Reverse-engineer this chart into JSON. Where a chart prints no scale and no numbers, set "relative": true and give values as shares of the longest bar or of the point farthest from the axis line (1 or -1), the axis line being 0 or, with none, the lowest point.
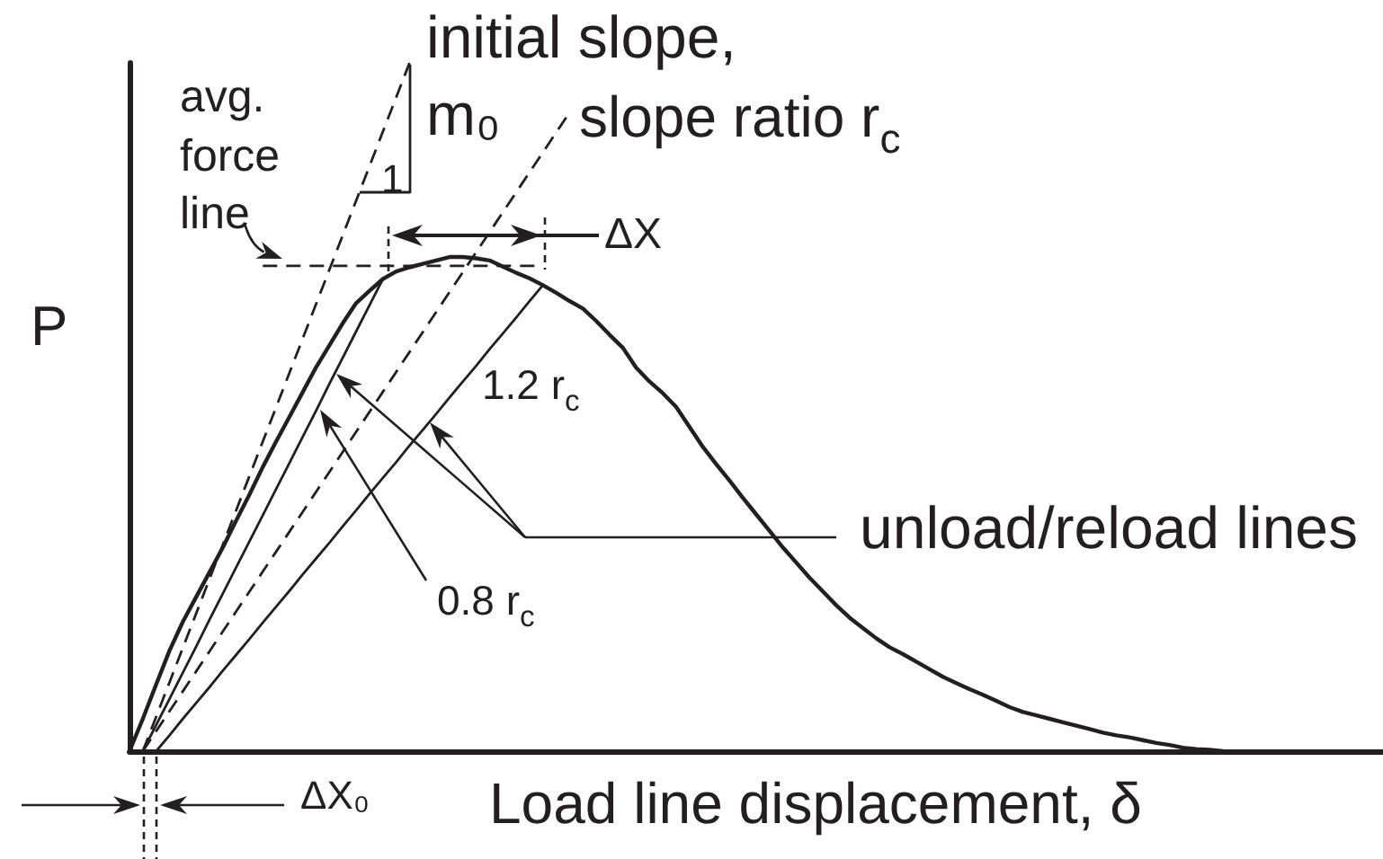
{
  "chart_data": {
    "type": "line",
    "xlabel": "Load line displacement, δ",
    "ylabel": "P",
    "relative": true,
    "tick_labels": false,
    "marker": "none",
    "categories": [
      null,
      null,
      null,
      null,
      null,
      null,
      null,
      null,
      null,
      null,
      null,
      null,
      null,
      null,
      null,
      null,
      null,
      null,
      null,
      null,
      null,
      null,
      null,
      null,
      null,
      null,
      null,
      null,
      null,
      null,
      null,
      null,
      null,
      null,
      null,
      null,
      null,
      null,
      null,
      null,
      null,
      null,
      null,
      null,
      null,
      null,
      null,
      null,
      null,
      null,
      null,
      null,
      null,
      null,
      null,
      null,
      null,
      null,
      null,
      null,
      null,
      null,
      null,
      null,
      null,
      null,
      null,
      null,
      null,
      null,
      null,
      null,
      null,
      null,
      null,
      null,
      null,
      null,
      null,
      null,
      null,
      null,
      null,
      null,
      null,
      null,
      null,
      null,
      null,
      null,
      null,
      null,
      null,
      null,
      null
    ],
    "annotations": [
      "ΔX",
      "1",
      "1.2 r$_{c}$",
      "0.8 r$_{c}$",
      "unload/reload lines",
      "ΔX₀",
      "m₀"
    ],
    "series": [
      {
        "color": "#231f20",
        "values": [
          0,
          0.047,
          0.097,
          0.146,
          0.188,
          0.224,
          0.26,
          0.296,
          0.335,
          0.373,
          0.413,
          0.45,
          0.486,
          0.522,
          0.558,
          0.59,
          0.622,
          0.651,
          0.669,
          0.686,
          0.697,
          0.703,
          0.708,
          0.713,
          0.718,
          0.718,
          0.716,
          0.713,
          0.704,
          0.695,
          0.687,
          0.677,
          0.666,
          0.654,
          0.643,
          0.625,
          0.605,
          0.586,
          0.557,
          0.537,
          0.52,
          0.5,
          0.471,
          0.442,
          0.417,
          0.393,
          0.368,
          0.344,
          0.32,
          0.296,
          0.274,
          0.252,
          0.232,
          0.212,
          0.194,
          0.179,
          0.164,
          0.151,
          0.141,
          0.13,
          0.119,
          0.108,
          0.099,
          0.09,
          0.082,
          0.073,
          0.064,
          0.057,
          0.052,
          0.047,
          0.042,
          0.037,
          0.032,
          0.027,
          0.023,
          0.02,
          0.016,
          0.012,
          0.009,
          0.005,
          0.003,
          0.002,
          0,
          null,
          null,
          null,
          null,
          null,
          null,
          null,
          null,
          null,
          null,
          null,
          null
        ]
      },
      {
        "name": "initial slope,",
        "color": "#231f20",
        "line_style": "dashed",
        "values": [
          null,
          0,
          0.05,
          0.1,
          0.15,
          0.2,
          0.25,
          0.3,
          0.35,
          0.4,
          0.45,
          0.5,
          0.55,
          0.6,
          0.65,
          0.7,
          0.75,
          0.8,
          0.85,
          0.9,
          0.95,
          1,
          null,
          null,
          null,
          null,
          null,
          null,
          null,
          null,
          null,
          null,
          null,
          null,
          null,
          null,
          null,
          null,
          null,
          null,
          null,
          null,
          null,
          null,
          null,
          null,
          null,
          null,
          null,
          null,
          null,
          null,
          null,
          null,
          null,
          null,
          null,
          null,
          null,
          null,
          null,
          null,
          null,
          null,
          null,
          null,
          null,
          null,
          null,
          null,
          null,
          null,
          null,
          null,
          null,
          null,
          null,
          null,
          null,
          null,
          null,
          null,
          null,
          null,
          null,
          null,
          null,
          null,
          null,
          null,
          null,
          null,
          null,
          null,
          null
        ]
      },
      {
        "name": "slope ratio r$_{c}$",
        "color": "#231f20",
        "line_style": "dashed",
        "values": [
          null,
          0,
          0.029,
          0.058,
          0.087,
          0.116,
          0.145,
          0.174,
          0.203,
          0.232,
          0.261,
          0.29,
          0.319,
          0.348,
          0.377,
          0.406,
          0.435,
          0.464,
          0.493,
          0.522,
          0.551,
          0.58,
          0.609,
          0.638,
          0.667,
          0.696,
          0.725,
          0.754,
          0.783,
          0.812,
          0.841,
          0.87,
          0.899,
          0.928,
          null,
          null,
          null,
          null,
          null,
          null,
          null,
          null,
          null,
          null,
          null,
          null,
          null,
          null,
          null,
          null,
          null,
          null,
          null,
          null,
          null,
          null,
          null,
          null,
          null,
          null,
          null,
          null,
          null,
          null,
          null,
          null,
          null,
          null,
          null,
          null,
          null,
          null,
          null,
          null,
          null,
          null,
          null,
          null,
          null,
          null,
          null,
          null,
          null,
          null,
          null,
          null,
          null,
          null,
          null,
          null,
          null,
          null,
          null,
          null,
          null
        ]
      },
      {
        "color": "#231f20",
        "values": [
          null,
          0,
          0.038,
          0.076,
          0.114,
          0.152,
          0.191,
          0.229,
          0.267,
          0.305,
          0.343,
          0.381,
          0.419,
          0.457,
          0.495,
          0.534,
          0.572,
          0.61,
          0.648,
          0.686,
          null,
          null,
          null,
          null,
          null,
          null,
          null,
          null,
          null,
          null,
          null,
          null,
          null,
          null,
          null,
          null,
          null,
          null,
          null,
          null,
          null,
          null,
          null,
          null,
          null,
          null,
          null,
          null,
          null,
          null,
          null,
          null,
          null,
          null,
          null,
          null,
          null,
          null,
          null,
          null,
          null,
          null,
          null,
          null,
          null,
          null,
          null,
          null,
          null,
          null,
          null,
          null,
          null,
          null,
          null,
          null,
          null,
          null,
          null,
          null,
          null,
          null,
          null,
          null,
          null,
          null,
          null,
          null,
          null,
          null,
          null,
          null,
          null,
          null,
          null
        ]
      },
      {
        "color": "#231f20",
        "values": [
          null,
          null,
          0,
          0.023,
          0.047,
          0.07,
          0.093,
          0.117,
          0.14,
          0.163,
          0.187,
          0.21,
          0.233,
          0.257,
          0.28,
          0.303,
          0.327,
          0.35,
          0.374,
          0.397,
          0.42,
          0.444,
          0.467,
          0.49,
          0.514,
          0.537,
          0.56,
          0.584,
          0.607,
          0.63,
          0.654,
          0.677,
          null,
          null,
          null,
          null,
          null,
          null,
          null,
          null,
          null,
          null,
          null,
          null,
          null,
          null,
          null,
          null,
          null,
          null,
          null,
          null,
          null,
          null,
          null,
          null,
          null,
          null,
          null,
          null,
          null,
          null,
          null,
          null,
          null,
          null,
          null,
          null,
          null,
          null,
          null,
          null,
          null,
          null,
          null,
          null,
          null,
          null,
          null,
          null,
          null,
          null,
          null,
          null,
          null,
          null,
          null,
          null,
          null,
          null,
          null,
          null,
          null,
          null,
          null
        ]
      },
      {
        "name": "avg. force line",
        "color": "#231f20",
        "line_style": "dashed",
        "values": [
          null,
          null,
          null,
          null,
          null,
          null,
          null,
          null,
          null,
          null,
          0.705,
          0.705,
          0.705,
          0.705,
          0.705,
          0.705,
          0.705,
          0.705,
          0.705,
          0.705,
          0.705,
          0.705,
          0.705,
          0.705,
          0.705,
          0.705,
          0.705,
          0.705,
          0.705,
          0.705,
          0.705,
          0.705,
          null,
          null,
          null,
          null,
          null,
          null,
          null,
          null,
          null,
          null,
          null,
          null,
          null,
          null,
          null,
          null,
          null,
          null,
          null,
          null,
          null,
          null,
          null,
          null,
          null,
          null,
          null,
          null,
          null,
          null,
          null,
          null,
          null,
          null,
          null,
          null,
          null,
          null,
          null,
          null,
          null,
          null,
          null,
          null,
          null,
          null,
          null,
          null,
          null,
          null,
          null,
          null,
          null,
          null,
          null,
          null,
          null,
          null,
          null,
          null,
          null,
          null,
          null
        ]
      }
    ]
  }
}
